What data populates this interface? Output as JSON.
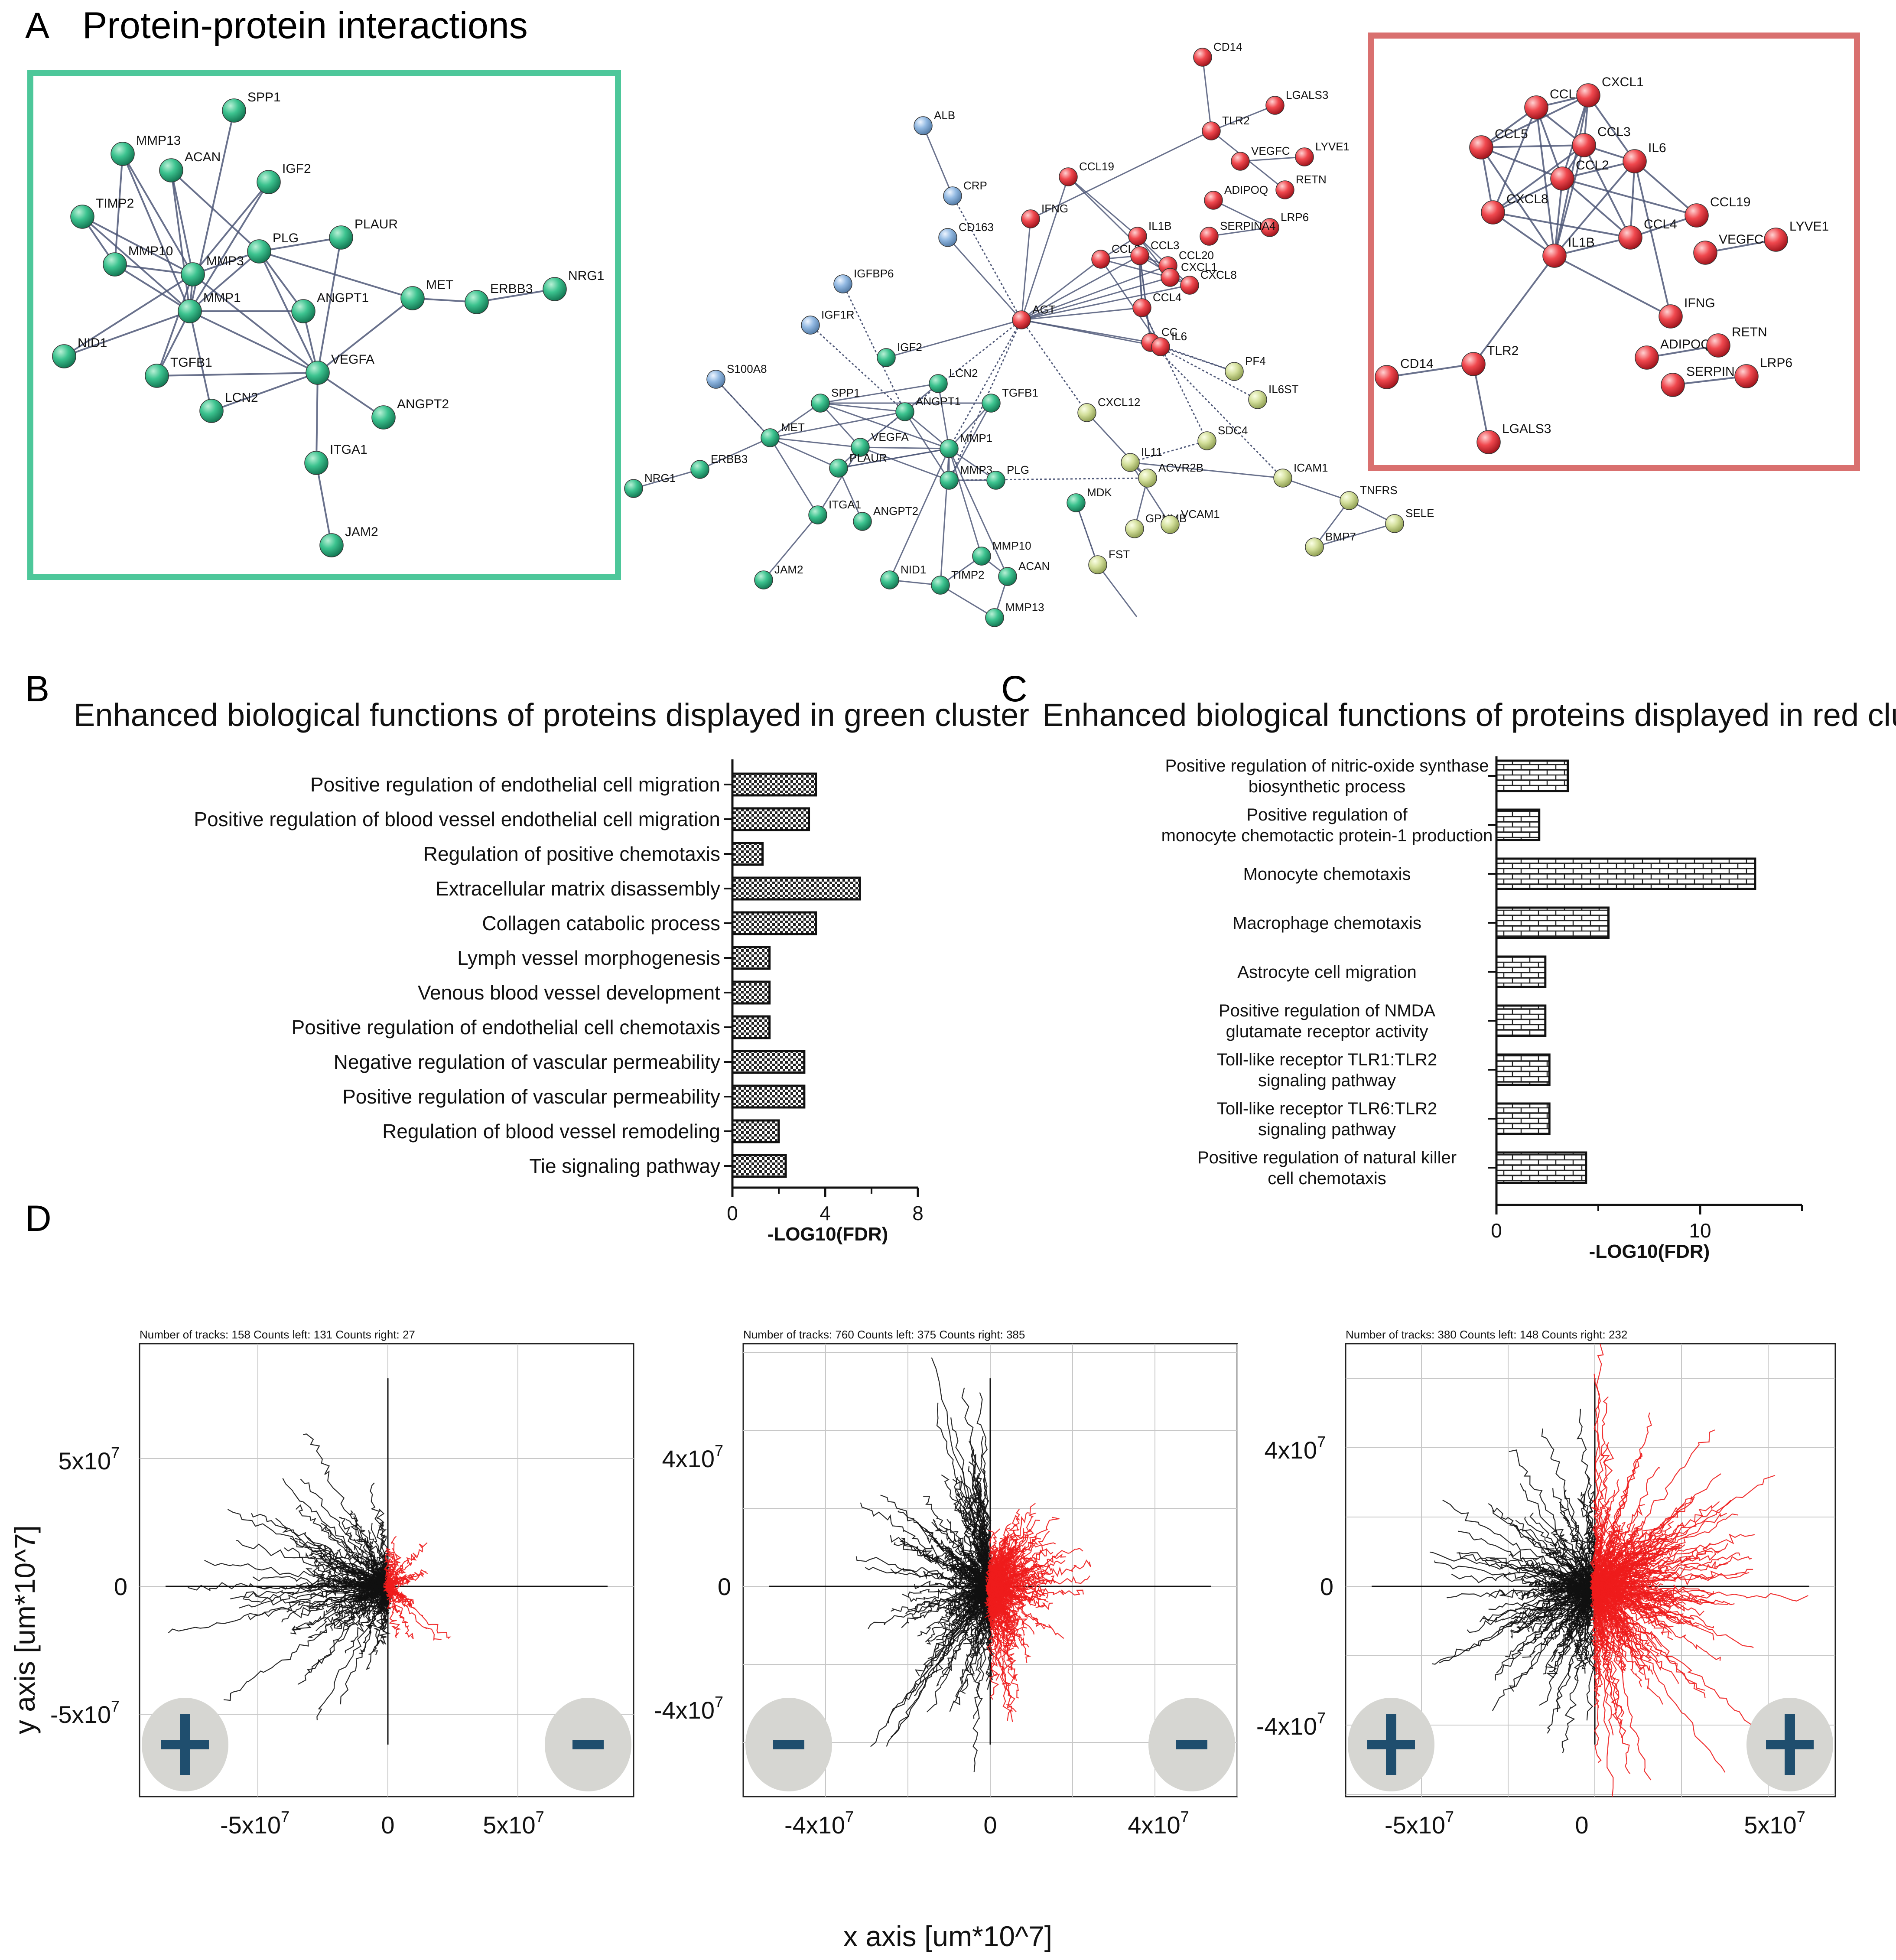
{
  "panels": {
    "A": {
      "letter": "A",
      "title": "Protein-protein interactions"
    },
    "B": {
      "letter": "B"
    },
    "C": {
      "letter": "C"
    },
    "D": {
      "letter": "D"
    }
  },
  "colors": {
    "green": "#2fb88a",
    "red": "#e8434a",
    "blue": "#8eb6e0",
    "yellow": "#cfdc95",
    "green_box": "#4dc79a",
    "red_box": "#d9706f",
    "edge": "#4f5878",
    "track_black": "#111111",
    "track_red": "#ee1c1c",
    "indicator_bg": "#d6d6d2",
    "indicator_fg": "#1f4e6e"
  },
  "network": {
    "green_cluster_nodes": [
      "SPP1",
      "MMP13",
      "ACAN",
      "IGF2",
      "TIMP2",
      "MMP10",
      "MMP3",
      "PLG",
      "PLAUR",
      "MET",
      "ERBB3",
      "NRG1",
      "MMP1",
      "ANGPT1",
      "NID1",
      "TGFB1",
      "LCN2",
      "VEGFA",
      "ANGPT2",
      "ITGA1",
      "JAM2"
    ],
    "red_cluster_nodes": [
      "CCL20",
      "CXCL1",
      "CCL5",
      "CCL3",
      "IL6",
      "CXCL8",
      "CCL2",
      "CCL4",
      "CCL19",
      "IL1B",
      "VEGFC",
      "LYVE1",
      "IFNG",
      "TLR2",
      "CD14",
      "ADIPOQ",
      "RETN",
      "SERPINA4",
      "LRP6",
      "LGALS3"
    ],
    "main_labels": [
      "ALB",
      "CRP",
      "CD163",
      "IGFBP6",
      "IGF1R",
      "IGF2",
      "S100A8",
      "MET",
      "SPP1",
      "LCN2",
      "TGFB1",
      "ANGPT1",
      "VEGFA",
      "MMP1",
      "MMP3",
      "PLG",
      "PLAUR",
      "ITGA1",
      "ANGPT2",
      "ERBB3",
      "NRG1",
      "JAM2",
      "NID1",
      "TIMP2",
      "MMP10",
      "ACAN",
      "MMP13",
      "CD14",
      "TLR2",
      "LGALS3",
      "LYVE1",
      "VEGFC",
      "RETN",
      "ADIPOQ",
      "LRP6",
      "SERPINA4",
      "CCL19",
      "IFNG",
      "IL1B",
      "CCL2",
      "CCL3",
      "CCL20",
      "CXCL8",
      "CXCL1",
      "CCL4",
      "CC",
      "IL6",
      "AGT",
      "PF4",
      "IL6ST",
      "CXCL12",
      "SDC4",
      "IL11",
      "ACVR2B",
      "MDK",
      "GPNMB",
      "VCAM1",
      "ICAM1",
      "TNFRS",
      "SELE",
      "BMP7",
      "FST"
    ]
  },
  "chart_data": [
    {
      "type": "bar",
      "orientation": "horizontal",
      "title": "Enhanced biological functions of proteins displayed in green cluster",
      "categories": [
        "Positive regulation of endothelial cell migration",
        "Positive regulation of blood vessel endothelial cell migration",
        "Regulation of positive chemotaxis",
        "Extracellular matrix disassembly",
        "Collagen catabolic process",
        "Lymph vessel morphogenesis",
        "Venous blood vessel development",
        "Positive regulation of endothelial cell chemotaxis",
        "Negative regulation of vascular permeability",
        "Positive regulation of vascular permeability",
        "Regulation of blood vessel remodeling",
        "Tie signaling pathway"
      ],
      "values": [
        3.6,
        3.3,
        1.3,
        5.5,
        3.6,
        1.6,
        1.6,
        1.6,
        3.1,
        3.1,
        2.0,
        2.3
      ],
      "xlabel": "-LOG10(FDR)",
      "xlim": [
        0,
        8
      ],
      "xticks": [
        "0",
        "4",
        "8"
      ],
      "pattern": "checkerboard"
    },
    {
      "type": "bar",
      "orientation": "horizontal",
      "title": "Enhanced biological functions of proteins displayed in red cluster",
      "categories": [
        [
          "Positive regulation of nitric-oxide synthase",
          "biosynthetic process"
        ],
        [
          "Positive regulation of",
          "monocyte chemotactic protein-1 production"
        ],
        [
          "Monocyte chemotaxis"
        ],
        [
          "Macrophage chemotaxis"
        ],
        [
          "Astrocyte cell migration"
        ],
        [
          "Positive regulation of NMDA",
          "glutamate receptor activity"
        ],
        [
          "Toll-like receptor TLR1:TLR2",
          "signaling pathway"
        ],
        [
          "Toll-like receptor TLR6:TLR2",
          "signaling pathway"
        ],
        [
          "Positive regulation of natural killer",
          "cell chemotaxis"
        ]
      ],
      "values": [
        3.5,
        2.1,
        12.7,
        5.5,
        2.4,
        2.4,
        2.6,
        2.6,
        4.4
      ],
      "xlabel": "-LOG10(FDR)",
      "xlim": [
        0,
        15
      ],
      "xticks": [
        "0",
        "10"
      ],
      "pattern": "brick"
    },
    {
      "type": "line",
      "subtype": "cell-migration-tracks",
      "header": "Number of tracks: 158  Counts left: 131  Counts right: 27",
      "xticks": [
        "-5x10",
        "0",
        "5x10"
      ],
      "yticks": [
        "5x10",
        "0",
        "-5x10"
      ],
      "tick_exponent": "7",
      "series": [
        {
          "name": "left-migrating",
          "color": "black",
          "count": 131
        },
        {
          "name": "right-migrating",
          "color": "red",
          "count": 27
        }
      ],
      "indicators": {
        "left": "+",
        "right": "-"
      }
    },
    {
      "type": "line",
      "subtype": "cell-migration-tracks",
      "header": "Number of tracks: 760  Counts left: 375  Counts right: 385",
      "xticks": [
        "-4x10",
        "0",
        "4x10"
      ],
      "yticks": [
        "4x10",
        "0",
        "-4x10"
      ],
      "tick_exponent": "7",
      "series": [
        {
          "name": "left-migrating",
          "color": "black",
          "count": 375
        },
        {
          "name": "right-migrating",
          "color": "red",
          "count": 385
        }
      ],
      "indicators": {
        "left": "-",
        "right": "-"
      }
    },
    {
      "type": "line",
      "subtype": "cell-migration-tracks",
      "header": "Number of tracks: 380  Counts left: 148  Counts right: 232",
      "xticks": [
        "-5x10",
        "0",
        "5x10"
      ],
      "yticks": [
        "4x10",
        "0",
        "-4x10"
      ],
      "tick_exponent": "7",
      "series": [
        {
          "name": "left-migrating",
          "color": "black",
          "count": 148
        },
        {
          "name": "right-migrating",
          "color": "red",
          "count": 232
        }
      ],
      "indicators": {
        "left": "+",
        "right": "+"
      }
    }
  ],
  "axis_titles": {
    "x": "x axis [um*10^7]",
    "y": "y axis [um*10^7]"
  }
}
